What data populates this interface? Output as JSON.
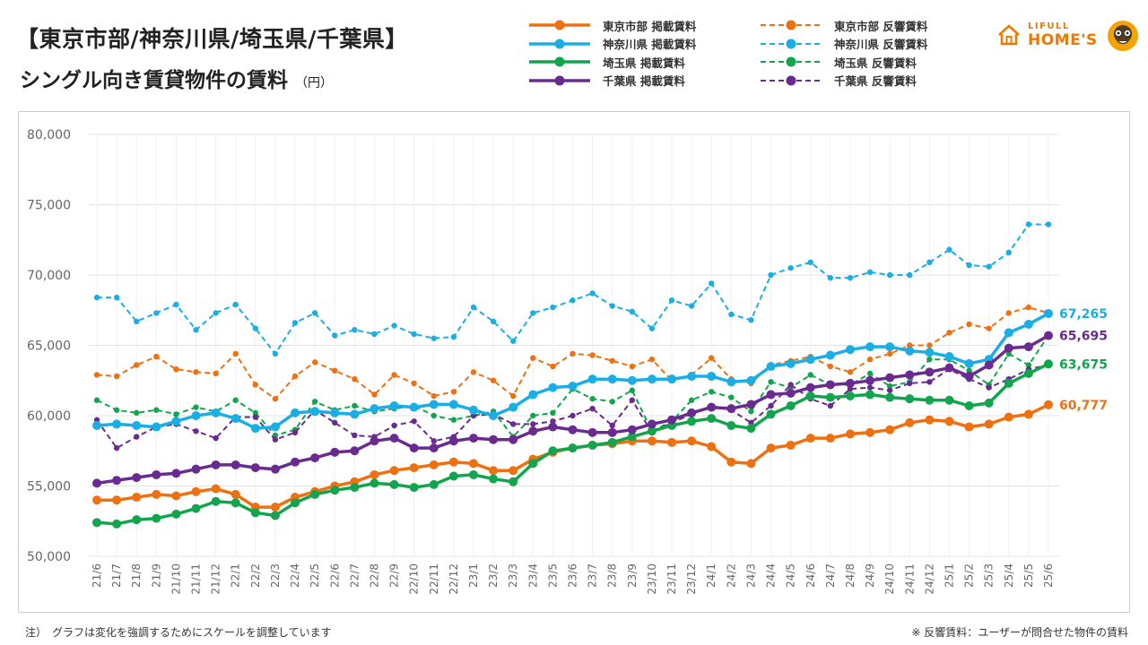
{
  "title_line1": "【東京市部/神奈川県/埼玉県/千葉県】",
  "title_line2": "シングル向き賃貸物件の賃料",
  "title_unit": "（円）",
  "logo": {
    "top": "LIFULL",
    "bottom": "HOME'S"
  },
  "note_left": "注）　グラフは変化を強調するためにスケールを調整しています",
  "note_right": "※ 反響賃料：ユーザーが問合せた物件の賃料",
  "chart_data": {
    "type": "line",
    "ylim": [
      50000,
      80000
    ],
    "yticks": [
      "50,000",
      "55,000",
      "60,000",
      "65,000",
      "70,000",
      "75,000",
      "80,000"
    ],
    "ytick_values": [
      50000,
      55000,
      60000,
      65000,
      70000,
      75000,
      80000
    ],
    "grid": true,
    "legend_position": "top",
    "categories": [
      "21/6",
      "21/7",
      "21/8",
      "21/9",
      "21/10",
      "21/11",
      "21/12",
      "22/1",
      "22/2",
      "22/3",
      "22/4",
      "22/5",
      "22/6",
      "22/7",
      "22/8",
      "22/9",
      "22/10",
      "22/11",
      "22/12",
      "23/1",
      "23/2",
      "23/3",
      "23/4",
      "23/5",
      "23/6",
      "23/7",
      "23/8",
      "23/9",
      "23/10",
      "23/11",
      "23/12",
      "24/1",
      "24/2",
      "24/3",
      "24/4",
      "24/5",
      "24/6",
      "24/7",
      "24/8",
      "24/9",
      "24/10",
      "24/11",
      "24/12",
      "25/1",
      "25/2",
      "25/3",
      "25/4",
      "25/5",
      "25/6"
    ],
    "series": [
      {
        "name": "東京市部 掲載賃料",
        "color": "#ee7011",
        "style": "solid",
        "end_label": "60,777",
        "values": [
          54000,
          54000,
          54200,
          54400,
          54300,
          54600,
          54800,
          54400,
          53500,
          53500,
          54200,
          54600,
          55000,
          55300,
          55800,
          56100,
          56300,
          56500,
          56700,
          56600,
          56100,
          56100,
          56900,
          57400,
          57700,
          57900,
          58000,
          58200,
          58200,
          58100,
          58200,
          57800,
          56700,
          56600,
          57700,
          57900,
          58400,
          58400,
          58700,
          58800,
          59000,
          59500,
          59700,
          59600,
          59200,
          59400,
          59900,
          60100,
          60777
        ]
      },
      {
        "name": "東京市部 反響賃料",
        "color": "#ee7011",
        "style": "dashed",
        "end_label": "",
        "values": [
          62900,
          62800,
          63600,
          64200,
          63300,
          63100,
          63000,
          64400,
          62200,
          61200,
          62800,
          63800,
          63200,
          62600,
          61500,
          62900,
          62300,
          61400,
          61700,
          63100,
          62500,
          61400,
          64100,
          63500,
          64400,
          64300,
          63900,
          63500,
          64000,
          62500,
          62900,
          64100,
          62600,
          62300,
          63600,
          63900,
          64200,
          63500,
          63100,
          64000,
          64400,
          65000,
          65000,
          65900,
          66500,
          66200,
          67300,
          67700,
          67300
        ]
      },
      {
        "name": "神奈川県 掲載賃料",
        "color": "#1aaee5",
        "style": "solid",
        "end_label": "67,265",
        "values": [
          59300,
          59400,
          59300,
          59200,
          59600,
          60000,
          60200,
          59800,
          59100,
          59200,
          60200,
          60300,
          60200,
          60100,
          60500,
          60700,
          60600,
          60800,
          60800,
          60400,
          60000,
          60600,
          61500,
          62000,
          62100,
          62600,
          62600,
          62500,
          62600,
          62600,
          62800,
          62800,
          62400,
          62500,
          63500,
          63700,
          64000,
          64300,
          64700,
          64900,
          64900,
          64600,
          64500,
          64200,
          63700,
          64000,
          65900,
          66500,
          67265
        ]
      },
      {
        "name": "神奈川県 反響賃料",
        "color": "#1aaee5",
        "style": "dashed",
        "end_label": "",
        "values": [
          68400,
          68400,
          66700,
          67300,
          67900,
          66100,
          67300,
          67900,
          66200,
          64400,
          66600,
          67300,
          65700,
          66100,
          65800,
          66400,
          65800,
          65500,
          65600,
          67700,
          66700,
          65300,
          67300,
          67700,
          68200,
          68700,
          67800,
          67400,
          66200,
          68200,
          67800,
          69400,
          67200,
          66800,
          70000,
          70500,
          70900,
          69800,
          69800,
          70200,
          70000,
          70000,
          70900,
          71800,
          70700,
          70600,
          71600,
          73600,
          73600
        ]
      },
      {
        "name": "埼玉県 掲載賃料",
        "color": "#13a54d",
        "style": "solid",
        "end_label": "63,675",
        "values": [
          52400,
          52300,
          52600,
          52700,
          53000,
          53400,
          53900,
          53800,
          53100,
          52900,
          53800,
          54400,
          54700,
          54900,
          55200,
          55100,
          54900,
          55100,
          55700,
          55800,
          55500,
          55300,
          56600,
          57500,
          57700,
          57900,
          58100,
          58500,
          58900,
          59300,
          59600,
          59800,
          59300,
          59100,
          60100,
          60700,
          61400,
          61300,
          61400,
          61500,
          61300,
          61200,
          61100,
          61100,
          60700,
          60900,
          62300,
          63000,
          63675
        ]
      },
      {
        "name": "埼玉県 反響賃料",
        "color": "#13a54d",
        "style": "dashed",
        "end_label": "",
        "values": [
          61100,
          60400,
          60200,
          60400,
          60100,
          60600,
          60300,
          61100,
          60200,
          58600,
          59000,
          61000,
          60400,
          60700,
          60300,
          60500,
          60700,
          60000,
          59700,
          60000,
          60300,
          58500,
          60000,
          60200,
          61900,
          61200,
          61000,
          61800,
          58900,
          59600,
          61100,
          61700,
          61300,
          60300,
          62400,
          62000,
          62900,
          62200,
          62200,
          63000,
          62100,
          62400,
          64000,
          64000,
          63200,
          62200,
          64400,
          63600,
          65700
        ]
      },
      {
        "name": "千葉県 掲載賃料",
        "color": "#6a2b90",
        "style": "solid",
        "end_label": "65,695",
        "values": [
          55200,
          55400,
          55600,
          55800,
          55900,
          56200,
          56500,
          56500,
          56300,
          56200,
          56700,
          57000,
          57400,
          57500,
          58200,
          58400,
          57700,
          57700,
          58200,
          58400,
          58300,
          58300,
          58900,
          59200,
          59000,
          58800,
          58800,
          59000,
          59400,
          59700,
          60200,
          60600,
          60500,
          60800,
          61500,
          61600,
          62000,
          62200,
          62300,
          62500,
          62700,
          62900,
          63100,
          63400,
          62800,
          63600,
          64800,
          64900,
          65695
        ]
      },
      {
        "name": "千葉県 反響賃料",
        "color": "#6a2b90",
        "style": "dashed",
        "end_label": "",
        "values": [
          59700,
          57700,
          58500,
          59200,
          59400,
          58900,
          58400,
          59900,
          59900,
          58300,
          58800,
          60400,
          59500,
          58600,
          58500,
          59300,
          59600,
          58200,
          58500,
          60000,
          60100,
          59400,
          59400,
          59600,
          60000,
          60500,
          59300,
          61100,
          58800,
          59500,
          60100,
          60700,
          60400,
          59500,
          60700,
          62200,
          61200,
          60700,
          61900,
          62000,
          61800,
          62300,
          62400,
          63300,
          62600,
          62000,
          62600,
          63300,
          63600
        ]
      }
    ]
  }
}
